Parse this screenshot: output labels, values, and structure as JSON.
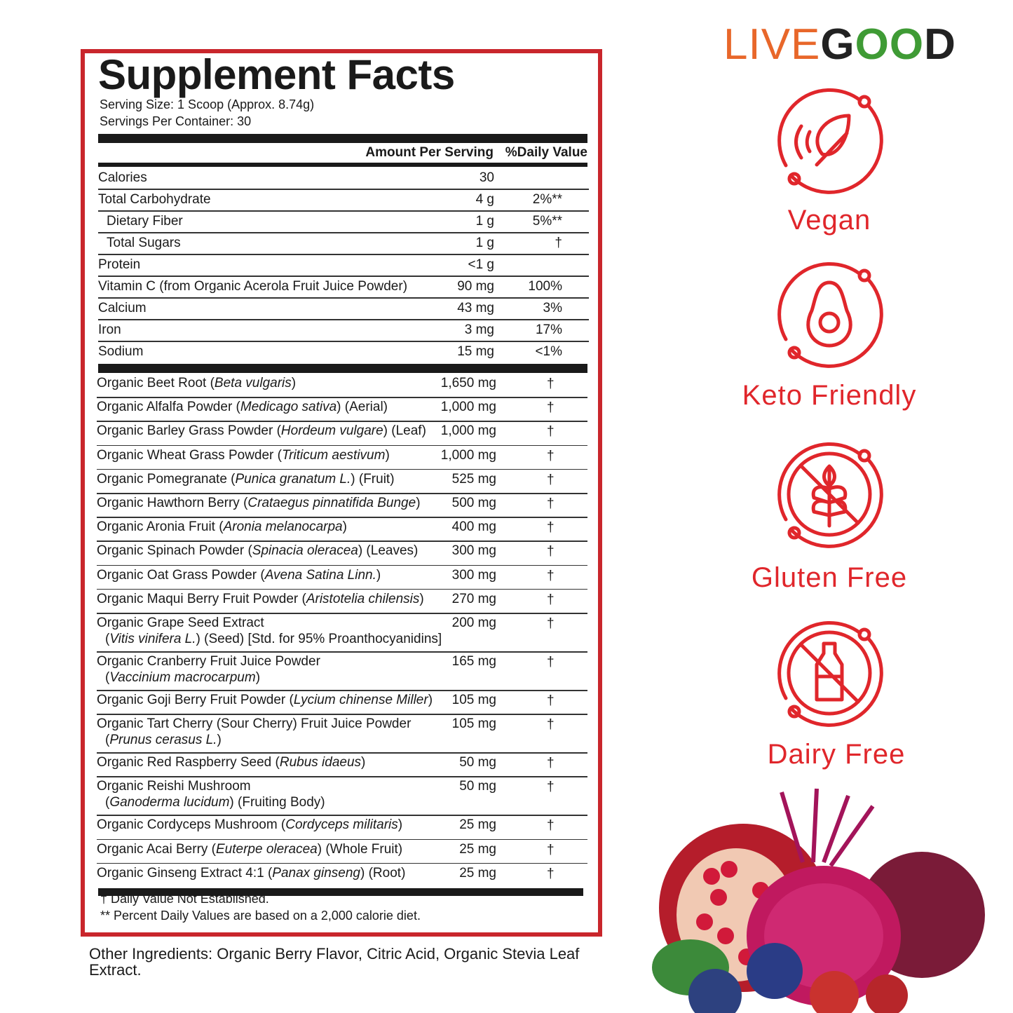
{
  "logo": [
    {
      "text": "LIVE",
      "color": "#e8672a"
    },
    {
      "text": "G",
      "color": "#222222"
    },
    {
      "text": "OO",
      "color": "#3f9b35"
    },
    {
      "text": "D",
      "color": "#222222"
    }
  ],
  "facts": {
    "title": "Supplement Facts",
    "serving_size": "Serving Size: 1 Scoop (Approx. 8.74g)",
    "servings_per_container": "Servings Per Container: 30",
    "header_amount": "Amount Per Serving",
    "header_dv": "%Daily Value",
    "nutrients": [
      {
        "name": "Calories",
        "amount": "30"
      },
      {
        "name": "Total Carbohydrate",
        "amount": "4 g",
        "dv": "2%**"
      },
      {
        "name": "Dietary Fiber",
        "amount": "1 g",
        "dv": "5%**",
        "indent": true
      },
      {
        "name": "Total Sugars",
        "amount": "1 g",
        "dv": "†",
        "indent": true
      },
      {
        "name": "Protein",
        "amount": "<1 g"
      },
      {
        "name": "Vitamin C (from Organic Acerola Fruit Juice Powder)",
        "amount": "90 mg",
        "dv": "100%"
      },
      {
        "name": "Calcium",
        "amount": "43 mg",
        "dv": "3%"
      },
      {
        "name": "Iron",
        "amount": "3 mg",
        "dv": "17%"
      },
      {
        "name": "Sodium",
        "amount": "15 mg",
        "dv": "<1%"
      }
    ],
    "ingredients": [
      {
        "lines": [
          [
            {
              "text": "Organic Beet Root ("
            },
            {
              "text": "Beta vulgaris",
              "italic": true
            },
            {
              "text": ")"
            }
          ]
        ],
        "amount": "1,650 mg",
        "dv": "†"
      },
      {
        "lines": [
          [
            {
              "text": "Organic Alfalfa Powder ("
            },
            {
              "text": "Medicago sativa",
              "italic": true
            },
            {
              "text": ") (Aerial)"
            }
          ]
        ],
        "amount": "1,000 mg",
        "dv": "†"
      },
      {
        "lines": [
          [
            {
              "text": "Organic Barley Grass Powder ("
            },
            {
              "text": "Hordeum vulgare",
              "italic": true
            },
            {
              "text": ") (Leaf)"
            }
          ]
        ],
        "amount": "1,000 mg",
        "dv": "†"
      },
      {
        "lines": [
          [
            {
              "text": "Organic Wheat Grass Powder ("
            },
            {
              "text": "Triticum aestivum",
              "italic": true
            },
            {
              "text": ")"
            }
          ]
        ],
        "amount": "1,000 mg",
        "dv": "†"
      },
      {
        "lines": [
          [
            {
              "text": "Organic Pomegranate ("
            },
            {
              "text": "Punica granatum L.",
              "italic": true
            },
            {
              "text": ") (Fruit)"
            }
          ]
        ],
        "amount": "525 mg",
        "dv": "†"
      },
      {
        "lines": [
          [
            {
              "text": "Organic Hawthorn Berry ("
            },
            {
              "text": "Crataegus pinnatifida Bunge",
              "italic": true
            },
            {
              "text": ")"
            }
          ]
        ],
        "amount": "500 mg",
        "dv": "†"
      },
      {
        "lines": [
          [
            {
              "text": "Organic Aronia Fruit ("
            },
            {
              "text": "Aronia melanocarpa",
              "italic": true
            },
            {
              "text": ")"
            }
          ]
        ],
        "amount": "400 mg",
        "dv": "†"
      },
      {
        "lines": [
          [
            {
              "text": "Organic Spinach Powder ("
            },
            {
              "text": "Spinacia oleracea",
              "italic": true
            },
            {
              "text": ") (Leaves)"
            }
          ]
        ],
        "amount": "300 mg",
        "dv": "†"
      },
      {
        "lines": [
          [
            {
              "text": "Organic Oat Grass Powder ("
            },
            {
              "text": "Avena Satina Linn.",
              "italic": true
            },
            {
              "text": ")"
            }
          ]
        ],
        "amount": "300 mg",
        "dv": "†"
      },
      {
        "lines": [
          [
            {
              "text": "Organic Maqui Berry Fruit Powder ("
            },
            {
              "text": "Aristotelia chilensis",
              "italic": true
            },
            {
              "text": ")"
            }
          ]
        ],
        "amount": "270 mg",
        "dv": "†"
      },
      {
        "lines": [
          [
            {
              "text": "Organic Grape Seed Extract"
            }
          ],
          [
            {
              "text": "("
            },
            {
              "text": "Vitis vinifera L.",
              "italic": true
            },
            {
              "text": ") (Seed) [Std. for 95% Proanthocyanidins]"
            }
          ]
        ],
        "amount": "200 mg",
        "dv": "†"
      },
      {
        "lines": [
          [
            {
              "text": "Organic Cranberry Fruit Juice Powder"
            }
          ],
          [
            {
              "text": "("
            },
            {
              "text": "Vaccinium macrocarpum",
              "italic": true
            },
            {
              "text": ")"
            }
          ]
        ],
        "amount": "165 mg",
        "dv": "†"
      },
      {
        "lines": [
          [
            {
              "text": "Organic Goji Berry Fruit Powder ("
            },
            {
              "text": "Lycium chinense Miller",
              "italic": true
            },
            {
              "text": ")"
            }
          ]
        ],
        "amount": "105 mg",
        "dv": "†"
      },
      {
        "lines": [
          [
            {
              "text": "Organic Tart Cherry (Sour Cherry) Fruit Juice Powder"
            }
          ],
          [
            {
              "text": "("
            },
            {
              "text": "Prunus cerasus L.",
              "italic": true
            },
            {
              "text": ")"
            }
          ]
        ],
        "amount": "105 mg",
        "dv": "†"
      },
      {
        "lines": [
          [
            {
              "text": "Organic Red Raspberry Seed ("
            },
            {
              "text": "Rubus idaeus",
              "italic": true
            },
            {
              "text": ")"
            }
          ]
        ],
        "amount": "50 mg",
        "dv": "†"
      },
      {
        "lines": [
          [
            {
              "text": "Organic Reishi Mushroom"
            }
          ],
          [
            {
              "text": "("
            },
            {
              "text": "Ganoderma lucidum",
              "italic": true
            },
            {
              "text": ") (Fruiting Body)"
            }
          ]
        ],
        "amount": "50 mg",
        "dv": "†"
      },
      {
        "lines": [
          [
            {
              "text": "Organic Cordyceps Mushroom ("
            },
            {
              "text": "Cordyceps militaris",
              "italic": true
            },
            {
              "text": ")"
            }
          ]
        ],
        "amount": "25 mg",
        "dv": "†"
      },
      {
        "lines": [
          [
            {
              "text": "Organic Acai Berry ("
            },
            {
              "text": "Euterpe oleracea",
              "italic": true
            },
            {
              "text": ") (Whole Fruit)"
            }
          ]
        ],
        "amount": "25 mg",
        "dv": "†"
      },
      {
        "lines": [
          [
            {
              "text": "Organic Ginseng Extract 4:1 ("
            },
            {
              "text": "Panax ginseng",
              "italic": true
            },
            {
              "text": ") (Root)"
            }
          ]
        ],
        "amount": "25 mg",
        "dv": "†"
      }
    ],
    "footnotes": [
      "† Daily Value Not Established.",
      "** Percent Daily Values are based on a 2,000 calorie diet."
    ]
  },
  "other_ingredients": "Other Ingredients: Organic Berry Flavor, Citric Acid, Organic Stevia Leaf Extract.",
  "badges": [
    {
      "label": "Vegan"
    },
    {
      "label": "Keto Friendly"
    },
    {
      "label": "Gluten Free"
    },
    {
      "label": "Dairy Free"
    }
  ]
}
